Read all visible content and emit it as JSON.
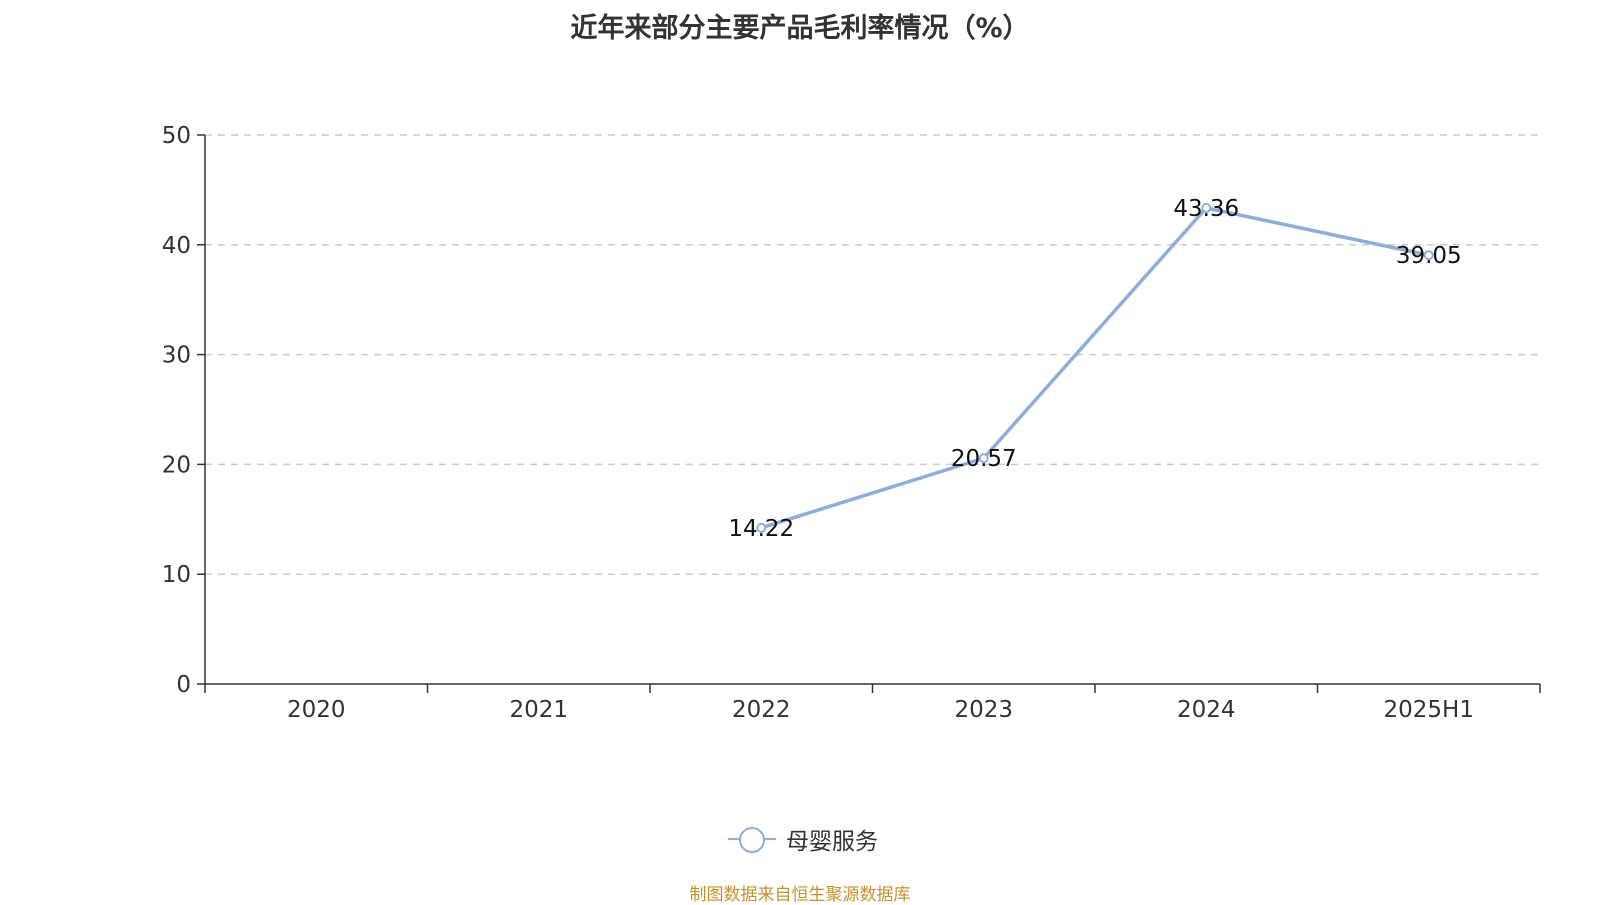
{
  "title": "近年来部分主要产品毛利率情况（%）",
  "source": "制图数据来自恒生聚源数据库",
  "colors": {
    "series": "#8eadd9",
    "grid": "#cccccc",
    "axis": "#333333",
    "source": "#c8902c"
  },
  "chart_data": {
    "type": "line",
    "title": "近年来部分主要产品毛利率情况（%）",
    "categories": [
      "2020",
      "2021",
      "2022",
      "2023",
      "2024",
      "2025H1"
    ],
    "series": [
      {
        "name": "母婴服务",
        "values": [
          null,
          null,
          14.22,
          20.57,
          43.36,
          39.05
        ]
      }
    ],
    "y_ticks": [
      0,
      10,
      20,
      30,
      40,
      50
    ],
    "ylim": [
      0,
      50
    ],
    "grid": true,
    "legend": "bottom-center",
    "data_labels": [
      "",
      "",
      "14.22",
      "20.57",
      "43.36",
      "39.05"
    ]
  }
}
